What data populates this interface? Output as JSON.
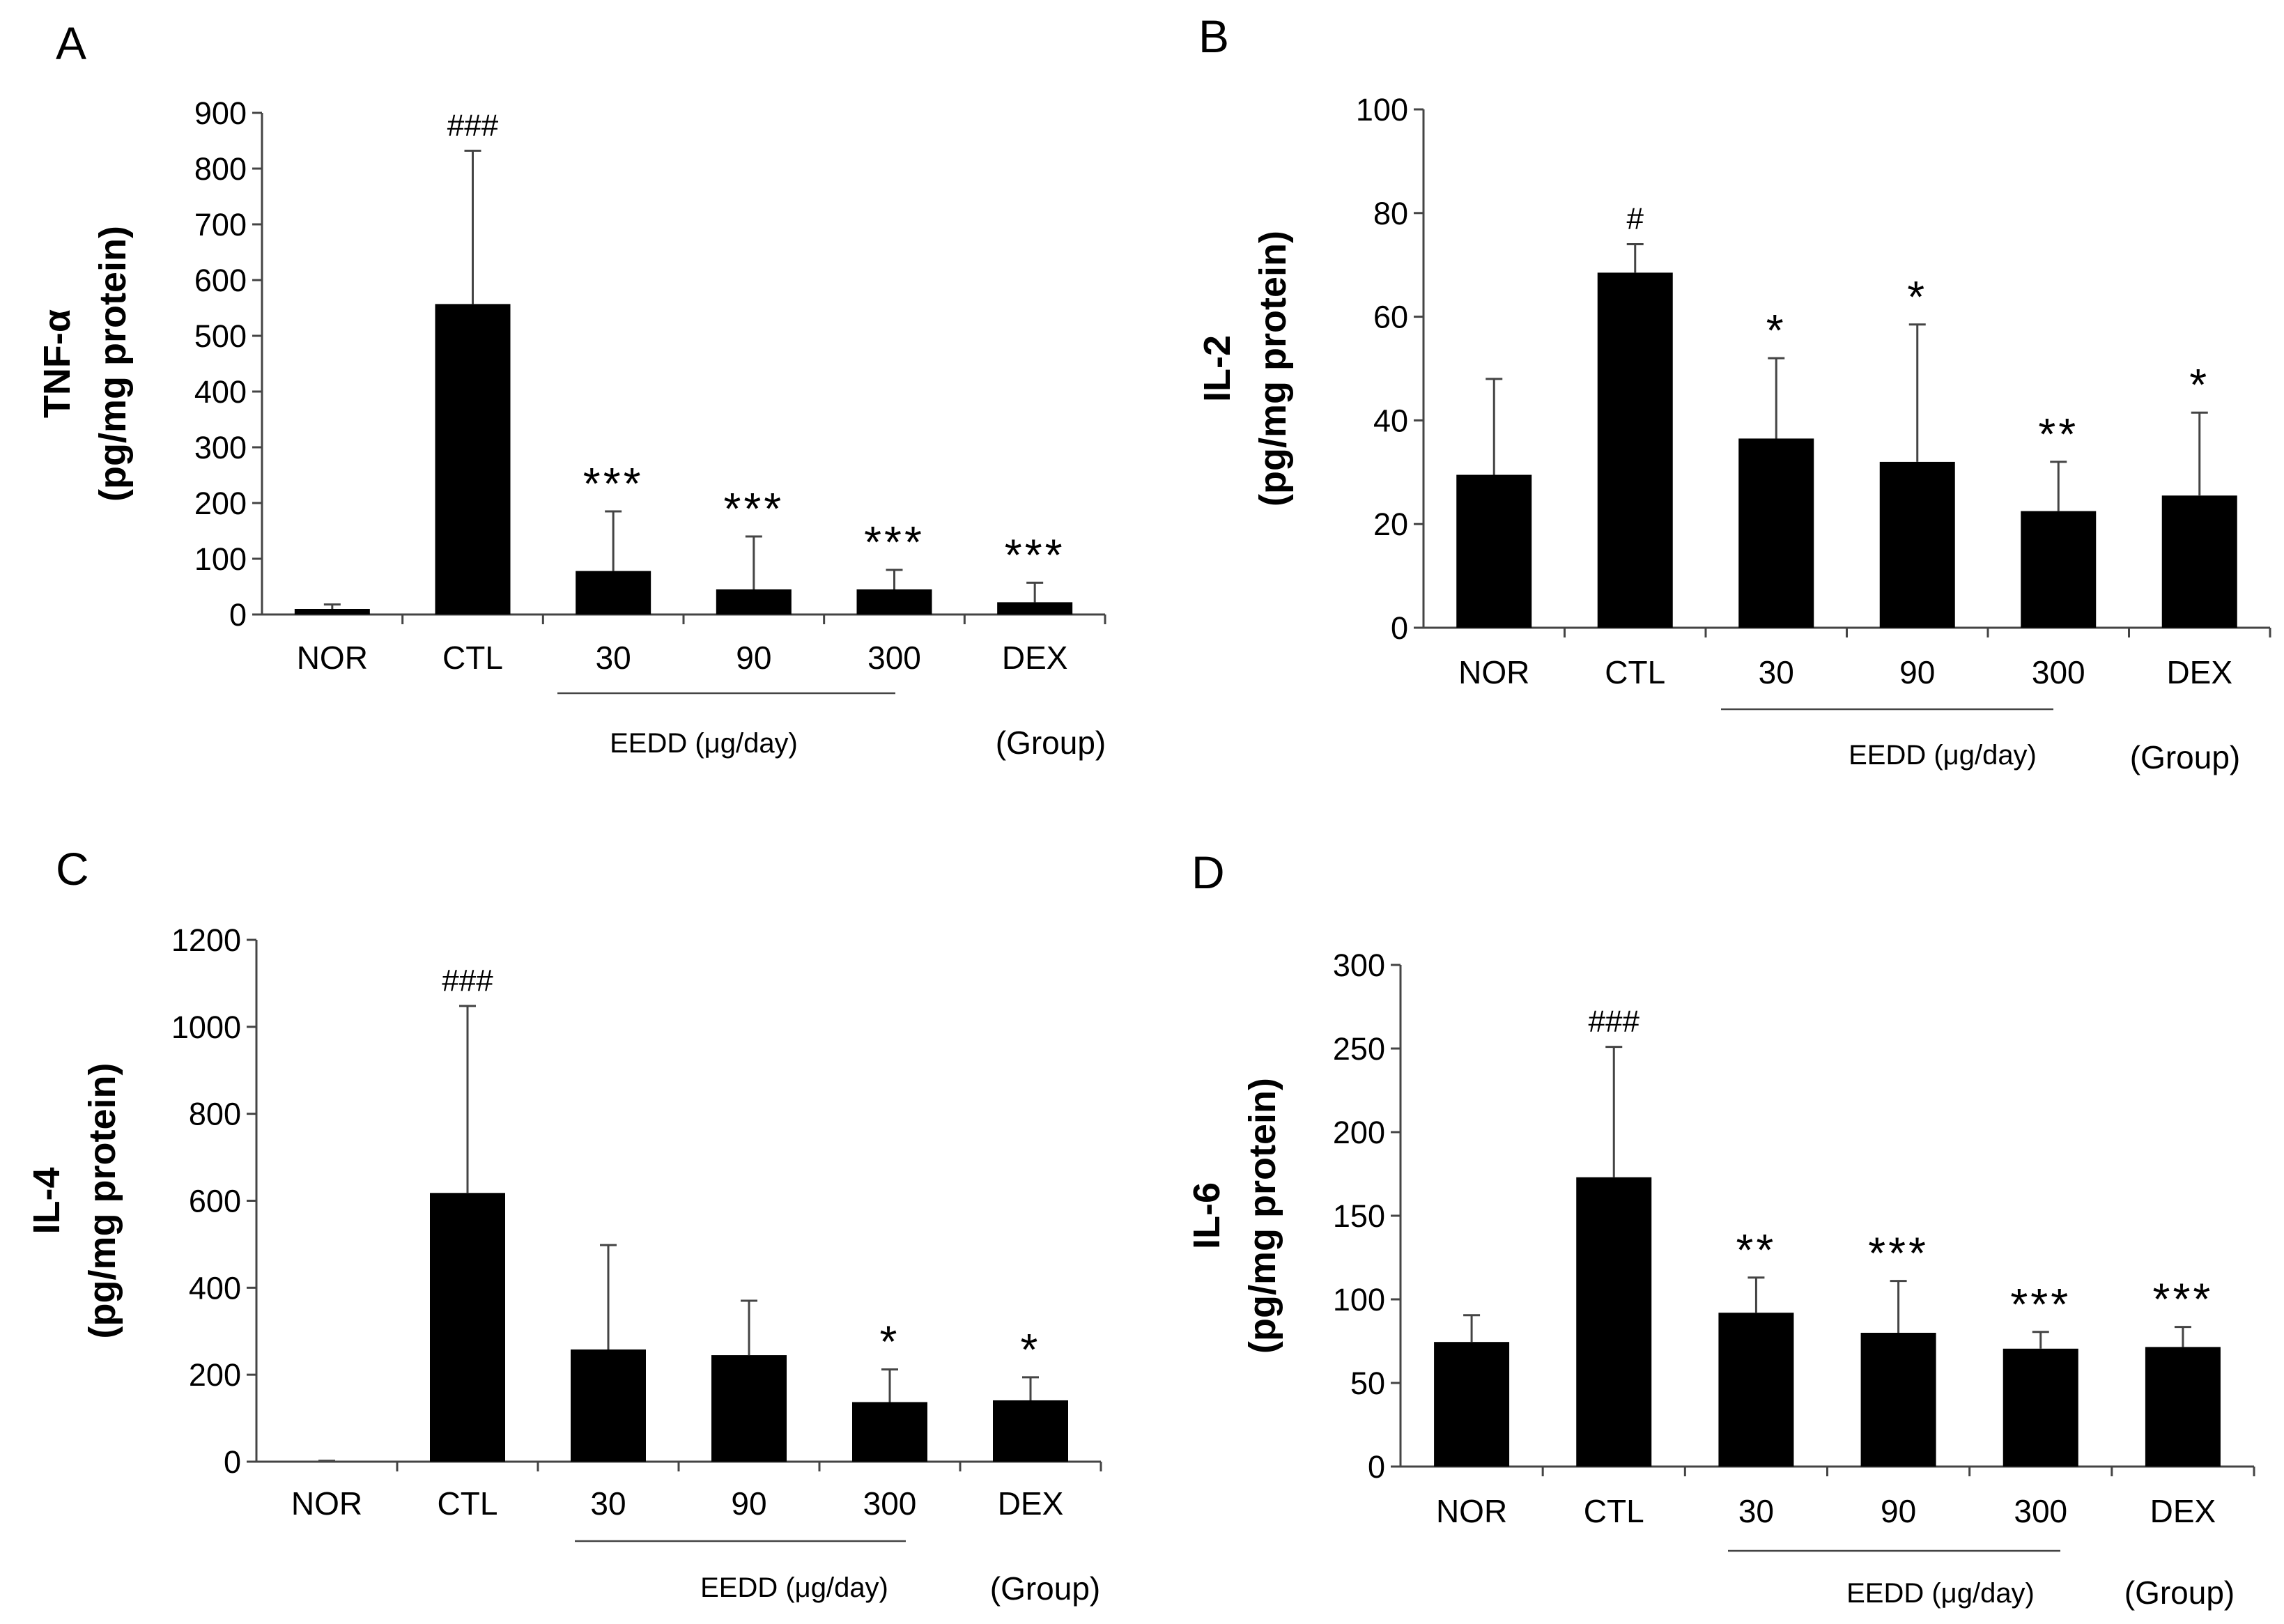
{
  "figure": {
    "bar_color": "#000000",
    "axis_color": "#444444"
  },
  "chart_data": [
    {
      "type": "bar",
      "panel": "A",
      "ylabel_line1": "TNF-α",
      "ylabel_line2": "(pg/mg protein)",
      "categories": [
        "NOR",
        "CTL",
        "30",
        "90",
        "300",
        "DEX"
      ],
      "values": [
        10,
        557,
        78,
        45,
        45,
        22
      ],
      "errors": [
        8,
        275,
        107,
        95,
        35,
        35
      ],
      "significance": [
        "",
        "###",
        "***",
        "***",
        "***",
        "***"
      ],
      "ylim": [
        0,
        900
      ],
      "yticks": [
        0,
        100,
        200,
        300,
        400,
        500,
        600,
        700,
        800,
        900
      ],
      "dose_label": "EEDD (μg/day)",
      "group_label": "(Group)"
    },
    {
      "type": "bar",
      "panel": "B",
      "ylabel_line1": "IL-2",
      "ylabel_line2": "(pg/mg protein)",
      "categories": [
        "NOR",
        "CTL",
        "30",
        "90",
        "300",
        "DEX"
      ],
      "values": [
        29.5,
        68.5,
        36.5,
        32,
        22.5,
        25.5
      ],
      "errors": [
        18.5,
        5.5,
        15.5,
        26.5,
        9.5,
        16
      ],
      "significance": [
        "",
        "#",
        "*",
        "*",
        "**",
        "*"
      ],
      "ylim": [
        0,
        100
      ],
      "yticks": [
        0,
        20,
        40,
        60,
        80,
        100
      ],
      "dose_label": "EEDD (μg/day)",
      "group_label": "(Group)"
    },
    {
      "type": "bar",
      "panel": "C",
      "ylabel_line1": "IL-4",
      "ylabel_line2": "(pg/mg protein)",
      "categories": [
        "NOR",
        "CTL",
        "30",
        "90",
        "300",
        "DEX"
      ],
      "values": [
        0,
        618,
        258,
        245,
        137,
        141
      ],
      "errors": [
        2,
        430,
        240,
        125,
        75,
        53
      ],
      "significance": [
        "",
        "###",
        "",
        "",
        "*",
        "*"
      ],
      "ylim": [
        0,
        1200
      ],
      "yticks": [
        0,
        200,
        400,
        600,
        800,
        1000,
        1200
      ],
      "dose_label": "EEDD (μg/day)",
      "group_label": "(Group)"
    },
    {
      "type": "bar",
      "panel": "D",
      "ylabel_line1": "IL-6",
      "ylabel_line2": "(pg/mg protein)",
      "categories": [
        "NOR",
        "CTL",
        "30",
        "90",
        "300",
        "DEX"
      ],
      "values": [
        74.5,
        173,
        92,
        80,
        70.5,
        71.5
      ],
      "errors": [
        16,
        78,
        21,
        31,
        10,
        12
      ],
      "significance": [
        "",
        "###",
        "**",
        "***",
        "***",
        "***"
      ],
      "ylim": [
        0,
        300
      ],
      "yticks": [
        0,
        50,
        100,
        150,
        200,
        250,
        300
      ],
      "dose_label": "EEDD (μg/day)",
      "group_label": "(Group)"
    }
  ]
}
